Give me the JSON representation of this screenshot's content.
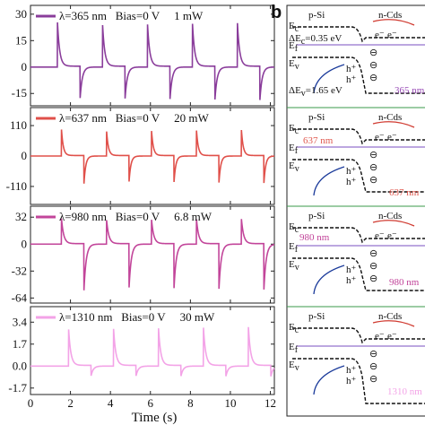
{
  "chart_data": [
    {
      "type": "line",
      "legend": "λ=365 nm   Bias=0 V     1 mW",
      "color": "#8a3d9b",
      "y_ticks": [
        30,
        15,
        0,
        -15
      ],
      "ylim": [
        -22,
        35
      ],
      "xlim": [
        0,
        12.2
      ],
      "waveform": {
        "period": 2.25,
        "first_on": 1.35,
        "positive_peak": 25,
        "negative_peak": -19,
        "baseline": 0
      }
    },
    {
      "type": "line",
      "legend": "λ=637 nm   Bias=0 V     20 mW",
      "color": "#e0504a",
      "y_ticks": [
        110,
        0,
        -110
      ],
      "ylim": [
        -175,
        175
      ],
      "xlim": [
        0,
        12.2
      ],
      "waveform": {
        "period": 2.25,
        "first_on": 1.55,
        "positive_peak": 95,
        "negative_peak": -100,
        "baseline": 0
      }
    },
    {
      "type": "line",
      "legend": "λ=980 nm   Bias=0 V     6.8 mW",
      "color": "#c2459a",
      "y_ticks": [
        32,
        0,
        -32,
        -64
      ],
      "ylim": [
        -70,
        45
      ],
      "xlim": [
        0,
        12.2
      ],
      "waveform": {
        "period": 2.25,
        "first_on": 1.55,
        "positive_peak": 30,
        "negative_peak": -55,
        "baseline": 0
      }
    },
    {
      "type": "line",
      "legend": "λ=1310 nm   Bias=0 V     30 mW",
      "color": "#f3a3e7",
      "y_ticks": [
        3.4,
        1.7,
        0.0,
        -1.7
      ],
      "ylim": [
        -2.2,
        4.6
      ],
      "xlim": [
        0,
        12.2
      ],
      "waveform": {
        "period": 2.25,
        "first_on": 1.9,
        "positive_peak": 3.0,
        "negative_peak": -0.8,
        "baseline": 0
      }
    }
  ],
  "x_axis": {
    "label": "Time (s)",
    "ticks": [
      0,
      2,
      4,
      6,
      8,
      10,
      12
    ]
  },
  "panel_b": {
    "letter": "b",
    "p_label": "p-Si",
    "n_label": "n-Cds",
    "delta_ec": "ΔE",
    "delta_ec_sub": "c",
    "delta_ec_value": "=0.35 eV",
    "delta_ev": "ΔE",
    "delta_ev_sub": "v",
    "delta_ev_value": "=1.65 eV",
    "ec": "E",
    "ec_sub": "c",
    "ef": "E",
    "ef_sub": "f",
    "ev": "E",
    "ev_sub": "v",
    "electron": "e⁻",
    "hole": "h⁺",
    "minus_glyph": "⊖",
    "wavelengths": [
      "365 nm",
      "637 nm",
      "637 nm",
      "980 nm",
      "980 nm",
      "1310 nm"
    ]
  }
}
